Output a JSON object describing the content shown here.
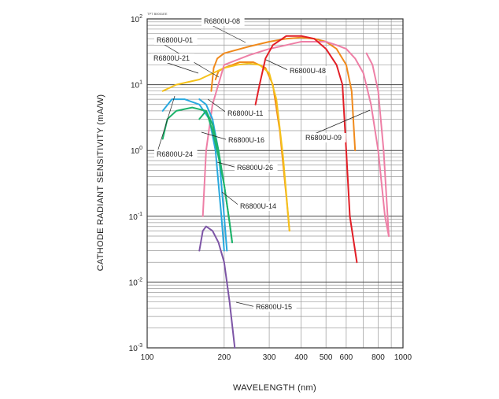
{
  "chart_data": {
    "type": "line",
    "title": "",
    "corner_note": "TPT B0001EE",
    "xlabel": "WAVELENGTH (nm)",
    "ylabel": "CATHODE RADIANT SENSITIVITY (mA/W)",
    "xscale": "log",
    "yscale": "log",
    "xlim": [
      100,
      1000
    ],
    "ylim": [
      0.001,
      100
    ],
    "grid": true,
    "legend": "none",
    "x_ticks": [
      {
        "value": 100,
        "label": "100"
      },
      {
        "value": 200,
        "label": "200"
      },
      {
        "value": 300,
        "label": "300"
      },
      {
        "value": 400,
        "label": "400"
      },
      {
        "value": 500,
        "label": "500"
      },
      {
        "value": 600,
        "label": "600"
      },
      {
        "value": 800,
        "label": "800"
      },
      {
        "value": 1000,
        "label": "1000"
      }
    ],
    "y_ticks": [
      {
        "value": 100,
        "base": "10",
        "exp": "2"
      },
      {
        "value": 10,
        "base": "10",
        "exp": "1"
      },
      {
        "value": 1,
        "base": "10",
        "exp": "0"
      },
      {
        "value": 0.1,
        "base": "10",
        "exp": "-1"
      },
      {
        "value": 0.01,
        "base": "10",
        "exp": "-2"
      },
      {
        "value": 0.001,
        "base": "10",
        "exp": "-3"
      }
    ],
    "series": [
      {
        "label": "R6800U-08",
        "color": "#f08a1c",
        "x": [
          178,
          182,
          188,
          200,
          250,
          300,
          350,
          400,
          450,
          500,
          550,
          600,
          630,
          650
        ],
        "y": [
          8,
          18,
          25,
          30,
          38,
          45,
          50,
          52,
          50,
          45,
          35,
          20,
          8,
          1
        ]
      },
      {
        "label": "R6800U-01",
        "color": "#f08a1c",
        "x": [
          185,
          190,
          200,
          230,
          260,
          290,
          310,
          330,
          350,
          360
        ],
        "y": [
          12,
          16,
          18,
          22,
          22,
          18,
          10,
          2,
          0.2,
          0.06
        ]
      },
      {
        "label": "R6800U-21",
        "color": "#f5c21b",
        "x": [
          115,
          130,
          160,
          200,
          225,
          250,
          275,
          300,
          320,
          340,
          360
        ],
        "y": [
          8,
          10,
          12,
          18,
          20,
          21,
          20,
          15,
          6,
          0.8,
          0.06
        ]
      },
      {
        "label": "R6800U-11",
        "color": "#ee7fa6",
        "x": [
          165,
          170,
          180,
          200,
          250,
          300,
          350,
          400,
          450,
          500,
          550,
          600,
          650,
          700,
          750,
          800,
          850,
          880
        ],
        "y": [
          0.1,
          1,
          5,
          20,
          28,
          35,
          40,
          45,
          45,
          45,
          40,
          35,
          25,
          15,
          5,
          1,
          0.1,
          0.05
        ]
      },
      {
        "label": "R6800U-48",
        "color": "#e21e26",
        "x": [
          265,
          275,
          290,
          310,
          350,
          400,
          450,
          500,
          550,
          580,
          600,
          620,
          660
        ],
        "y": [
          5,
          10,
          25,
          40,
          55,
          55,
          50,
          35,
          20,
          10,
          1,
          0.1,
          0.02
        ]
      },
      {
        "label": "R6800U-09",
        "color": "#ee7fa6",
        "x": [
          720,
          760,
          800,
          840,
          880
        ],
        "y": [
          30,
          20,
          8,
          1,
          0.05
        ]
      },
      {
        "label": "R6800U-24",
        "color": "#29a9df",
        "x": [
          115,
          125,
          140,
          160,
          175,
          185,
          195,
          200
        ],
        "y": [
          4,
          6,
          6,
          5,
          3,
          1,
          0.1,
          0.03
        ]
      },
      {
        "label": "R6800U-16",
        "color": "#29a9df",
        "x": [
          160,
          170,
          180,
          190,
          200,
          205
        ],
        "y": [
          6,
          5,
          3,
          1,
          0.1,
          0.03
        ]
      },
      {
        "label": "R6800U-26",
        "color": "#1db36b",
        "x": [
          115,
          120,
          130,
          150,
          170,
          180,
          190,
          200,
          210,
          215
        ],
        "y": [
          1.5,
          3,
          4,
          4.5,
          4,
          2,
          0.8,
          0.3,
          0.08,
          0.04
        ]
      },
      {
        "label": "R6800U-14",
        "color": "#1db36b",
        "x": [
          160,
          170,
          180,
          190,
          200,
          210,
          215
        ],
        "y": [
          3,
          4,
          2.5,
          1,
          0.3,
          0.08,
          0.04
        ]
      },
      {
        "label": "R6800U-15",
        "color": "#7d55a6",
        "x": [
          160,
          165,
          170,
          180,
          190,
          200,
          210,
          220
        ],
        "y": [
          0.03,
          0.06,
          0.07,
          0.06,
          0.04,
          0.02,
          0.005,
          0.001
        ]
      }
    ],
    "annotations": [
      {
        "text": "R6800U-08",
        "series": "R6800U-08"
      },
      {
        "text": "R6800U-01",
        "series": "R6800U-01"
      },
      {
        "text": "R6800U-21",
        "series": "R6800U-21"
      },
      {
        "text": "R6800U-48",
        "series": "R6800U-48"
      },
      {
        "text": "R6800U-11",
        "series": "R6800U-11"
      },
      {
        "text": "R6800U-09",
        "series": "R6800U-09"
      },
      {
        "text": "R6800U-16",
        "series": "R6800U-16"
      },
      {
        "text": "R6800U-24",
        "series": "R6800U-24"
      },
      {
        "text": "R6800U-26",
        "series": "R6800U-26"
      },
      {
        "text": "R6800U-14",
        "series": "R6800U-14"
      },
      {
        "text": "R6800U-15",
        "series": "R6800U-15"
      }
    ]
  }
}
